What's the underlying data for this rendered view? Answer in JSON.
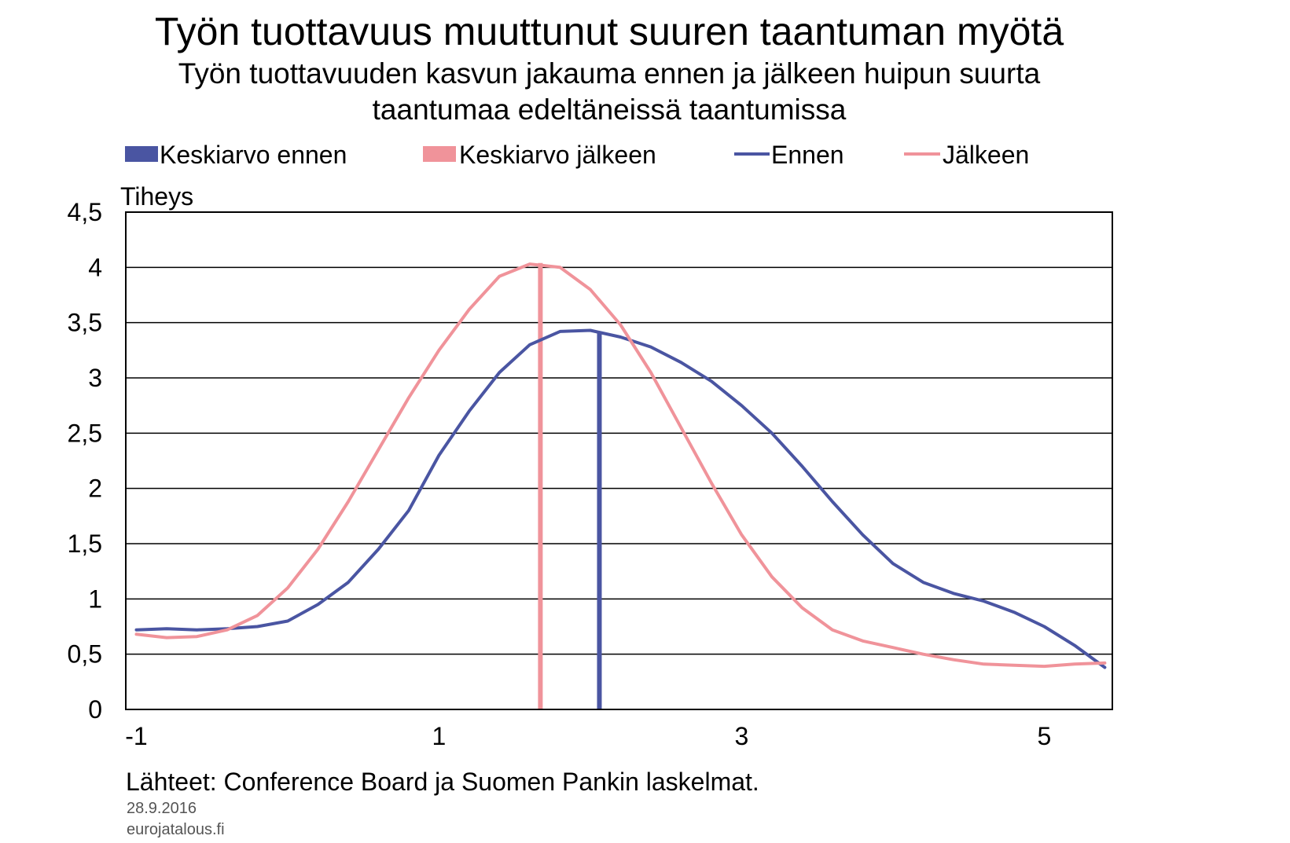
{
  "title": "Työn tuottavuus muuttunut suuren taantuman myötä",
  "subtitle_lines": [
    "Työn tuottavuuden kasvun jakauma ennen ja jälkeen huipun suurta",
    "taantumaa edeltäneissä taantumissa"
  ],
  "legend": [
    {
      "label": "Keskiarvo ennen",
      "type": "bar",
      "color": "#4a55a2"
    },
    {
      "label": "Keskiarvo jälkeen",
      "type": "bar",
      "color": "#f0939a"
    },
    {
      "label": "Ennen",
      "type": "line",
      "color": "#4a55a2"
    },
    {
      "label": "Jälkeen",
      "type": "line",
      "color": "#f0939a"
    }
  ],
  "source": "Lähteet: Conference Board ja Suomen Pankin laskelmat.",
  "date": "28.9.2016",
  "site": "eurojatalous.fi",
  "chart_data": {
    "type": "line",
    "title": "Työn tuottavuus muuttunut suuren taantuman myötä",
    "ylabel": "Tiheys",
    "xlabel": "",
    "xlim": [
      -1.07,
      5.45
    ],
    "ylim": [
      0,
      4.5
    ],
    "x_ticks": [
      -1,
      1,
      3,
      5
    ],
    "y_ticks": [
      0,
      0.5,
      1,
      1.5,
      2,
      2.5,
      3,
      3.5,
      4,
      4.5
    ],
    "y_tick_labels": [
      "0",
      "0,5",
      "1",
      "1,5",
      "2",
      "2,5",
      "3",
      "3,5",
      "4",
      "4,5"
    ],
    "grid": "horizontal",
    "legend_position": "top",
    "series": [
      {
        "name": "Ennen",
        "color": "#4a55a2",
        "x": [
          -1,
          -0.8,
          -0.6,
          -0.4,
          -0.2,
          0,
          0.2,
          0.4,
          0.6,
          0.8,
          1,
          1.2,
          1.4,
          1.6,
          1.8,
          2,
          2.2,
          2.4,
          2.6,
          2.8,
          3,
          3.2,
          3.4,
          3.6,
          3.8,
          4,
          4.2,
          4.4,
          4.6,
          4.8,
          5,
          5.2,
          5.4
        ],
        "y": [
          0.72,
          0.73,
          0.72,
          0.73,
          0.75,
          0.8,
          0.95,
          1.15,
          1.45,
          1.8,
          2.3,
          2.7,
          3.05,
          3.3,
          3.42,
          3.43,
          3.37,
          3.28,
          3.14,
          2.97,
          2.75,
          2.5,
          2.2,
          1.88,
          1.58,
          1.32,
          1.15,
          1.05,
          0.98,
          0.88,
          0.75,
          0.58,
          0.38
        ]
      },
      {
        "name": "Jälkeen",
        "color": "#f0939a",
        "x": [
          -1,
          -0.8,
          -0.6,
          -0.4,
          -0.2,
          0,
          0.2,
          0.4,
          0.6,
          0.8,
          1,
          1.2,
          1.4,
          1.6,
          1.8,
          2,
          2.2,
          2.4,
          2.6,
          2.8,
          3,
          3.2,
          3.4,
          3.6,
          3.8,
          4,
          4.2,
          4.4,
          4.6,
          4.8,
          5,
          5.2,
          5.4
        ],
        "y": [
          0.68,
          0.65,
          0.66,
          0.72,
          0.85,
          1.1,
          1.45,
          1.88,
          2.35,
          2.82,
          3.25,
          3.62,
          3.92,
          4.03,
          4.0,
          3.8,
          3.48,
          3.05,
          2.55,
          2.05,
          1.58,
          1.2,
          0.92,
          0.72,
          0.62,
          0.56,
          0.5,
          0.45,
          0.41,
          0.4,
          0.39,
          0.41,
          0.42
        ]
      }
    ],
    "markers": [
      {
        "name": "Keskiarvo ennen",
        "x": 2.06,
        "y": 3.42,
        "color": "#4a55a2"
      },
      {
        "name": "Keskiarvo jälkeen",
        "x": 1.67,
        "y": 4.04,
        "color": "#f0939a"
      }
    ]
  }
}
